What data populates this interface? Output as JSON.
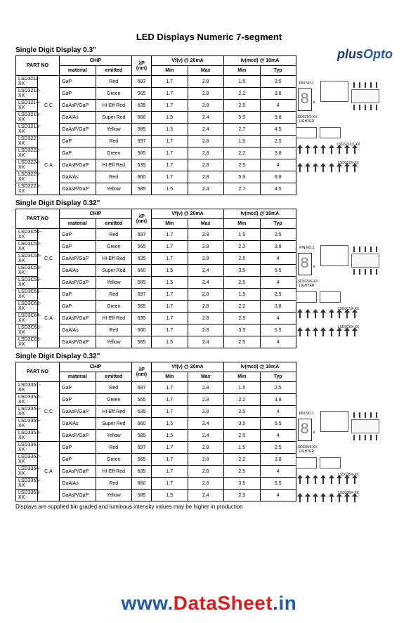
{
  "logo_plus": "plus",
  "logo_opto": "Opto",
  "page_title": "LED Displays Numeric 7-segment",
  "footnote": "Displays are supplied bin graded and luminous intensity values may be higher in production",
  "watermark_www": "www.",
  "watermark_ds": "DataSheet",
  "watermark_in": ".in",
  "hdr": {
    "partno": "PART NO",
    "chip": "CHIP",
    "material": "material",
    "emitted": "emitted",
    "wavelength": "λP (nm)",
    "vf": "Vf(v) @ 20mA",
    "iv": "Iv(mcd) @ 10mA",
    "min": "Min",
    "max": "Max",
    "typ": "Typ"
  },
  "sections": [
    {
      "title": "Single Digit Display 0.3\"",
      "groups": [
        {
          "cc": "C.C",
          "rows": [
            {
              "pn": "LSD3211-XX",
              "mat": "GaP",
              "emit": "Red",
              "wl": "697",
              "vmin": "1.7",
              "vmax": "2.8",
              "imin": "1.5",
              "ityp": "2.5"
            },
            {
              "pn": "LSD3212-XX",
              "mat": "GaP",
              "emit": "Green",
              "wl": "565",
              "vmin": "1.7",
              "vmax": "2.8",
              "imin": "2.2",
              "ityp": "3.8"
            },
            {
              "pn": "LSD3214-XX",
              "mat": "GaAsP/GaP",
              "emit": "HI-Eff Red",
              "wl": "635",
              "vmin": "1.7",
              "vmax": "2.8",
              "imin": "2.5",
              "ityp": "4"
            },
            {
              "pn": "LSD3215-XX",
              "mat": "GaAlAs",
              "emit": "Super Red",
              "wl": "660",
              "vmin": "1.5",
              "vmax": "2.4",
              "imin": "5.9",
              "ityp": "9.8"
            },
            {
              "pn": "LSD3213-XX",
              "mat": "GaAsP/GaP",
              "emit": "Yellow",
              "wl": "585",
              "vmin": "1.5",
              "vmax": "2.4",
              "imin": "2.7",
              "ityp": "4.5"
            }
          ]
        },
        {
          "cc": "C.A",
          "rows": [
            {
              "pn": "LSD3221-XX",
              "mat": "GaP",
              "emit": "Red",
              "wl": "697",
              "vmin": "1.7",
              "vmax": "2.8",
              "imin": "1.5",
              "ityp": "2.5"
            },
            {
              "pn": "LSD3222-XX",
              "mat": "GaP",
              "emit": "Green",
              "wl": "565",
              "vmin": "1.7",
              "vmax": "2.8",
              "imin": "2.2",
              "ityp": "3.8"
            },
            {
              "pn": "LSD3224-XX",
              "mat": "GaAsP/GaP",
              "emit": "HI-Eff Red",
              "wl": "635",
              "vmin": "1.7",
              "vmax": "2.8",
              "imin": "2.5",
              "ityp": "4"
            },
            {
              "pn": "LSD3225-XX",
              "mat": "GaAlAs",
              "emit": "Red",
              "wl": "660",
              "vmin": "1.7",
              "vmax": "2.8",
              "imin": "5.9",
              "ityp": "9.8"
            },
            {
              "pn": "LSD3223-XX",
              "mat": "GaAsP/GaP",
              "emit": "Yellow",
              "wl": "585",
              "vmin": "1.5",
              "vmax": "2.4",
              "imin": "2.7",
              "ityp": "4.5"
            }
          ]
        }
      ]
    },
    {
      "title": "Single Digit Display 0.32\"",
      "groups": [
        {
          "cc": "C.C",
          "rows": [
            {
              "pn": "LSD3C51-XX",
              "mat": "GaP",
              "emit": "Red",
              "wl": "697",
              "vmin": "1.7",
              "vmax": "2.8",
              "imin": "1.5",
              "ityp": "2.5"
            },
            {
              "pn": "LSD3C52-XX",
              "mat": "GaP",
              "emit": "Green",
              "wl": "565",
              "vmin": "1.7",
              "vmax": "2.8",
              "imin": "2.2",
              "ityp": "3.8"
            },
            {
              "pn": "LSD3C54-XX",
              "mat": "GaAsP/GaP",
              "emit": "HI-Eff Red",
              "wl": "635",
              "vmin": "1.7",
              "vmax": "2.8",
              "imin": "2.5",
              "ityp": "4"
            },
            {
              "pn": "LSD3C55-XX",
              "mat": "GaAlAs",
              "emit": "Super Red",
              "wl": "660",
              "vmin": "1.5",
              "vmax": "2.4",
              "imin": "3.5",
              "ityp": "5.5"
            },
            {
              "pn": "LSD3C53-XX",
              "mat": "GaAsP/GaP",
              "emit": "Yellow",
              "wl": "585",
              "vmin": "1.5",
              "vmax": "2.4",
              "imin": "2.5",
              "ityp": "4"
            }
          ]
        },
        {
          "cc": "C.A",
          "rows": [
            {
              "pn": "LSD3C61-XX",
              "mat": "GaP",
              "emit": "Red",
              "wl": "697",
              "vmin": "1.7",
              "vmax": "2.8",
              "imin": "1.5",
              "ityp": "2.5"
            },
            {
              "pn": "LSD3C62-XX",
              "mat": "GaP",
              "emit": "Green",
              "wl": "565",
              "vmin": "1.7",
              "vmax": "2.8",
              "imin": "2.2",
              "ityp": "3.8"
            },
            {
              "pn": "LSD3C64-XX",
              "mat": "GaAsP/GaP",
              "emit": "HI-Eff Red",
              "wl": "635",
              "vmin": "1.7",
              "vmax": "2.8",
              "imin": "2.5",
              "ityp": "4"
            },
            {
              "pn": "LSD3C65-XX",
              "mat": "GaAlAs",
              "emit": "Red",
              "wl": "660",
              "vmin": "1.7",
              "vmax": "2.8",
              "imin": "3.5",
              "ityp": "5.5"
            },
            {
              "pn": "LSD3C63-XX",
              "mat": "GaAsP/GaP",
              "emit": "Yellow",
              "wl": "585",
              "vmin": "1.5",
              "vmax": "2.4",
              "imin": "2.5",
              "ityp": "4"
            }
          ]
        }
      ]
    },
    {
      "title": "Single Digit Display 0.32\"",
      "groups": [
        {
          "cc": "C.C",
          "rows": [
            {
              "pn": "LSD3351-XX",
              "mat": "GaP",
              "emit": "Red",
              "wl": "697",
              "vmin": "1.7",
              "vmax": "2.8",
              "imin": "1.5",
              "ityp": "2.5"
            },
            {
              "pn": "LSD3352-XX",
              "mat": "GaP",
              "emit": "Green",
              "wl": "565",
              "vmin": "1.7",
              "vmax": "2.8",
              "imin": "2.2",
              "ityp": "3.8"
            },
            {
              "pn": "LSD3354-XX",
              "mat": "GaAsP/GaP",
              "emit": "HI-Eff Red",
              "wl": "635",
              "vmin": "1.7",
              "vmax": "2.8",
              "imin": "2.5",
              "ityp": "4"
            },
            {
              "pn": "LSD3355-XX",
              "mat": "GaAlAs",
              "emit": "Super Red",
              "wl": "660",
              "vmin": "1.5",
              "vmax": "2.4",
              "imin": "3.5",
              "ityp": "5.5"
            },
            {
              "pn": "LSD3353-XX",
              "mat": "GaAsP/GaP",
              "emit": "Yellow",
              "wl": "585",
              "vmin": "1.5",
              "vmax": "2.4",
              "imin": "2.5",
              "ityp": "4"
            }
          ]
        },
        {
          "cc": "C.A",
          "rows": [
            {
              "pn": "LSD3361-XX",
              "mat": "GaP",
              "emit": "Red",
              "wl": "697",
              "vmin": "1.7",
              "vmax": "2.8",
              "imin": "1.5",
              "ityp": "2.5"
            },
            {
              "pn": "LSD3362-XX",
              "mat": "GaP",
              "emit": "Green",
              "wl": "565",
              "vmin": "1.7",
              "vmax": "2.8",
              "imin": "2.2",
              "ityp": "3.8"
            },
            {
              "pn": "LSD3364-XX",
              "mat": "GaAsP/GaP",
              "emit": "HI-Eff Red",
              "wl": "635",
              "vmin": "1.7",
              "vmax": "2.8",
              "imin": "2.5",
              "ityp": "4"
            },
            {
              "pn": "LSD3365-XX",
              "mat": "GaAlAs",
              "emit": "Red",
              "wl": "660",
              "vmin": "1.7",
              "vmax": "2.8",
              "imin": "3.5",
              "ityp": "5.5"
            },
            {
              "pn": "LSD3363-XX",
              "mat": "GaAsP/GaP",
              "emit": "Yellow",
              "wl": "585",
              "vmin": "1.5",
              "vmax": "2.4",
              "imin": "2.5",
              "ityp": "4"
            }
          ]
        }
      ]
    }
  ],
  "diag_labels": [
    "LSD321XX-XX",
    "LSD322X-XX",
    "LSD3C5X-XX",
    "LSD3C6X-XX",
    "LSD335X-XX",
    "LSD336X-XX"
  ]
}
